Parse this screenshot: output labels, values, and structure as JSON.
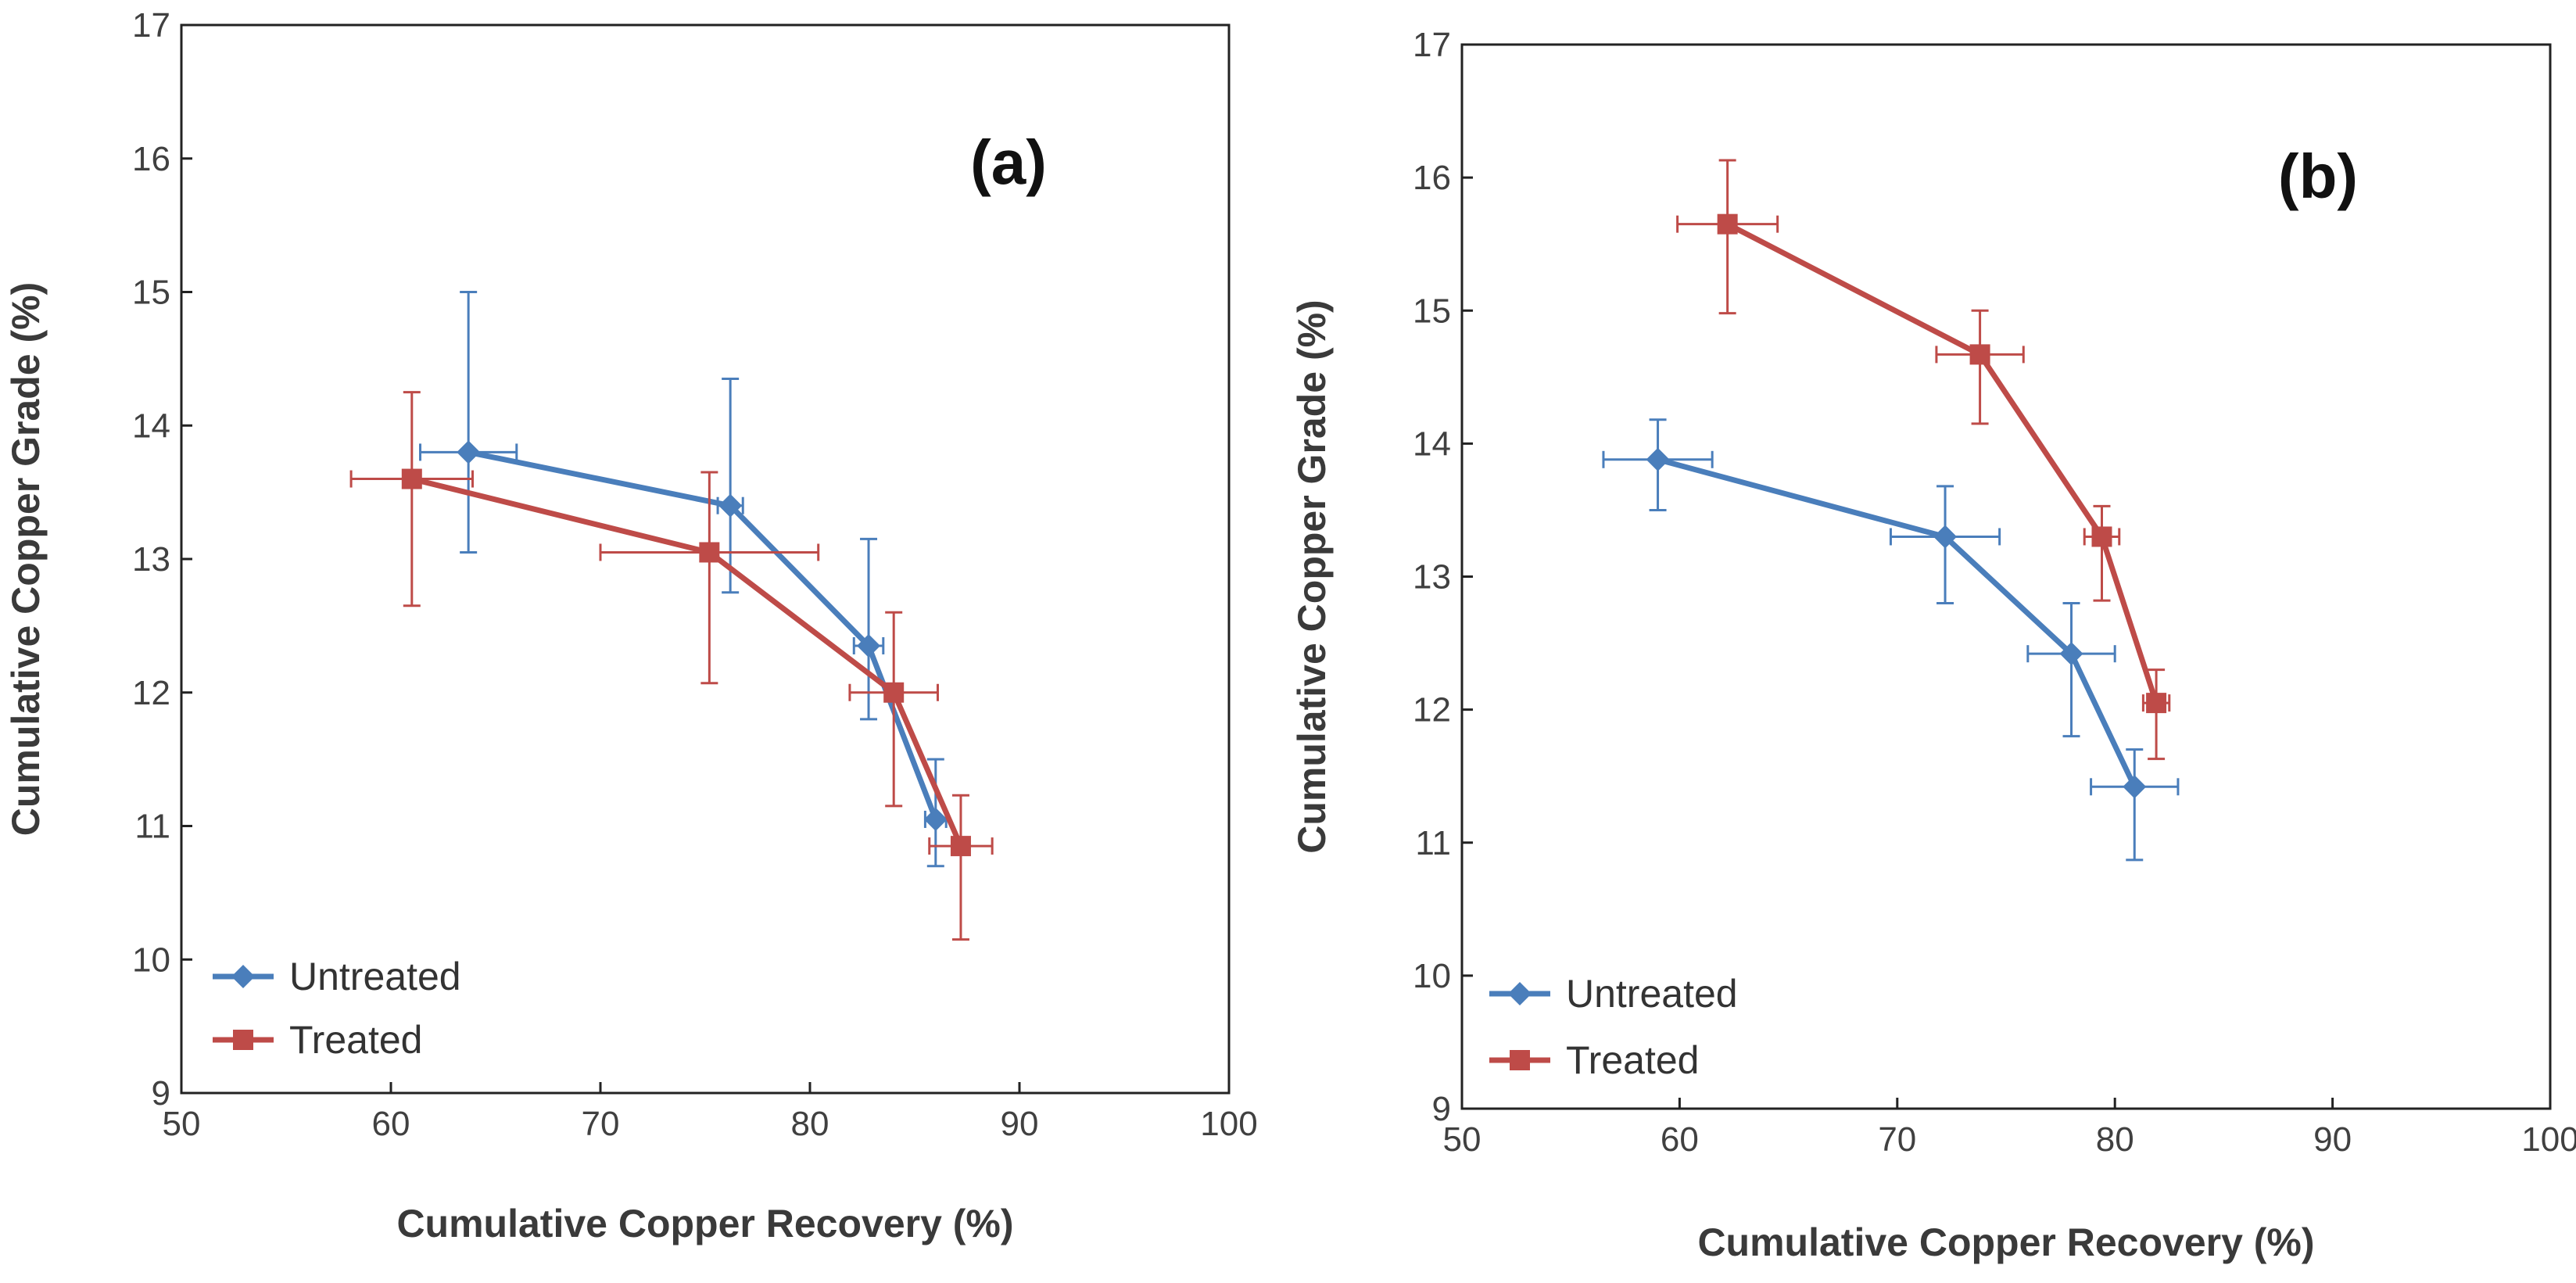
{
  "chart_data": [
    {
      "type": "line",
      "panel_label": "(a)",
      "xlabel": "Cumulative Copper Recovery (%)",
      "ylabel": "Cumulative Copper Grade (%)",
      "xlim": [
        50,
        100
      ],
      "ylim": [
        9,
        17
      ],
      "xticks": [
        50,
        60,
        70,
        80,
        90,
        100
      ],
      "yticks": [
        9,
        10,
        11,
        12,
        13,
        14,
        15,
        16,
        17
      ],
      "grid": false,
      "legend_position": "bottom-left",
      "series": [
        {
          "name": "Untreated",
          "color": "#4a7ebb",
          "marker": "diamond",
          "x": [
            63.7,
            76.2,
            82.8,
            86.0
          ],
          "y": [
            13.8,
            13.4,
            12.35,
            11.05
          ],
          "x_err": [
            2.3,
            0.6,
            0.7,
            0.5
          ],
          "y_err_plus": [
            1.2,
            0.95,
            0.8,
            0.45
          ],
          "y_err_minus": [
            0.75,
            0.65,
            0.55,
            0.35
          ]
        },
        {
          "name": "Treated",
          "color": "#be4b48",
          "marker": "square",
          "x": [
            61.0,
            75.2,
            84.0,
            87.2
          ],
          "y": [
            13.6,
            13.05,
            12.0,
            10.85
          ],
          "x_err": [
            2.9,
            5.2,
            2.1,
            1.5
          ],
          "y_err_plus": [
            0.65,
            0.6,
            0.6,
            0.38
          ],
          "y_err_minus": [
            0.95,
            0.98,
            0.85,
            0.7
          ]
        }
      ]
    },
    {
      "type": "line",
      "panel_label": "(b)",
      "xlabel": "Cumulative Copper Recovery (%)",
      "ylabel": "Cumulative Copper Grade (%)",
      "xlim": [
        50,
        100
      ],
      "ylim": [
        9,
        17
      ],
      "xticks": [
        50,
        60,
        70,
        80,
        90,
        100
      ],
      "yticks": [
        9,
        10,
        11,
        12,
        13,
        14,
        15,
        16,
        17
      ],
      "grid": false,
      "legend_position": "bottom-left",
      "series": [
        {
          "name": "Untreated",
          "color": "#4a7ebb",
          "marker": "diamond",
          "x": [
            59.0,
            72.2,
            78.0,
            80.9
          ],
          "y": [
            13.88,
            13.3,
            12.42,
            11.42
          ],
          "x_err": [
            2.5,
            2.5,
            2.0,
            2.0
          ],
          "y_err_plus": [
            0.3,
            0.38,
            0.38,
            0.28
          ],
          "y_err_minus": [
            0.38,
            0.5,
            0.62,
            0.55
          ]
        },
        {
          "name": "Treated",
          "color": "#be4b48",
          "marker": "square",
          "x": [
            62.2,
            73.8,
            79.4,
            81.9
          ],
          "y": [
            15.65,
            14.67,
            13.3,
            12.05
          ],
          "x_err": [
            2.3,
            2.0,
            0.8,
            0.6
          ],
          "y_err_plus": [
            0.48,
            0.33,
            0.23,
            0.25
          ],
          "y_err_minus": [
            0.67,
            0.52,
            0.48,
            0.42
          ]
        }
      ]
    }
  ]
}
